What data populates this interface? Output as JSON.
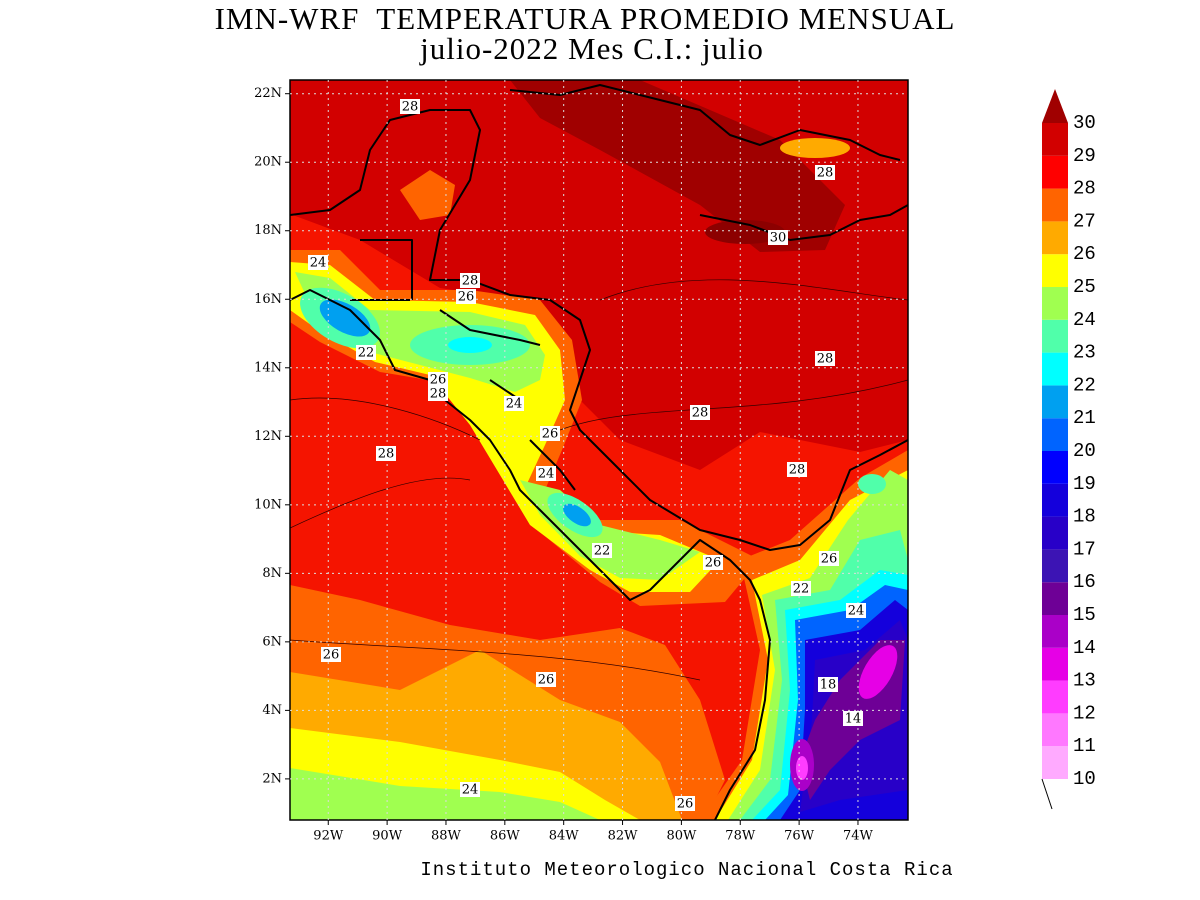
{
  "title": "IMN-WRF  TEMPERATURA PROMEDIO MENSUAL",
  "subtitle": "julio-2022 Mes C.I.: julio",
  "footer": "Instituto Meteorologico Nacional Costa Rica",
  "map": {
    "lat_range": [
      0.8,
      22.4
    ],
    "lon_range": [
      -93.3,
      -72.3
    ],
    "lat_ticks": [
      {
        "value": 22,
        "label": "22N"
      },
      {
        "value": 20,
        "label": "20N"
      },
      {
        "value": 18,
        "label": "18N"
      },
      {
        "value": 16,
        "label": "16N"
      },
      {
        "value": 14,
        "label": "14N"
      },
      {
        "value": 12,
        "label": "12N"
      },
      {
        "value": 10,
        "label": "10N"
      },
      {
        "value": 8,
        "label": "8N"
      },
      {
        "value": 6,
        "label": "6N"
      },
      {
        "value": 4,
        "label": "4N"
      },
      {
        "value": 2,
        "label": "2N"
      }
    ],
    "lon_ticks": [
      {
        "value": -92,
        "label": "92W"
      },
      {
        "value": -90,
        "label": "90W"
      },
      {
        "value": -88,
        "label": "88W"
      },
      {
        "value": -86,
        "label": "86W"
      },
      {
        "value": -84,
        "label": "84W"
      },
      {
        "value": -82,
        "label": "82W"
      },
      {
        "value": -80,
        "label": "80W"
      },
      {
        "value": -78,
        "label": "78W"
      },
      {
        "value": -76,
        "label": "76W"
      },
      {
        "value": -74,
        "label": "74W"
      }
    ],
    "contour_labels": [
      28,
      28,
      30,
      24,
      28,
      26,
      22,
      26,
      28,
      24,
      26,
      28,
      28,
      28,
      28,
      24,
      22,
      26,
      26,
      22,
      24,
      26,
      26,
      18,
      14,
      24,
      26
    ]
  },
  "colorbar": {
    "levels": [
      10,
      11,
      12,
      13,
      14,
      15,
      16,
      17,
      18,
      19,
      20,
      21,
      22,
      23,
      24,
      25,
      26,
      27,
      28,
      29,
      30
    ],
    "colors": [
      "#ffaaff",
      "#ff78ff",
      "#ff3cff",
      "#e600e6",
      "#aa00c8",
      "#6e0096",
      "#3c14b4",
      "#2800c8",
      "#1400dc",
      "#0000ff",
      "#0064ff",
      "#00a0f0",
      "#00ffff",
      "#50ffaa",
      "#a0ff50",
      "#ffff00",
      "#ffaa00",
      "#ff6400",
      "#ff0000",
      "#d20000"
    ],
    "over_color": "#a00000"
  }
}
